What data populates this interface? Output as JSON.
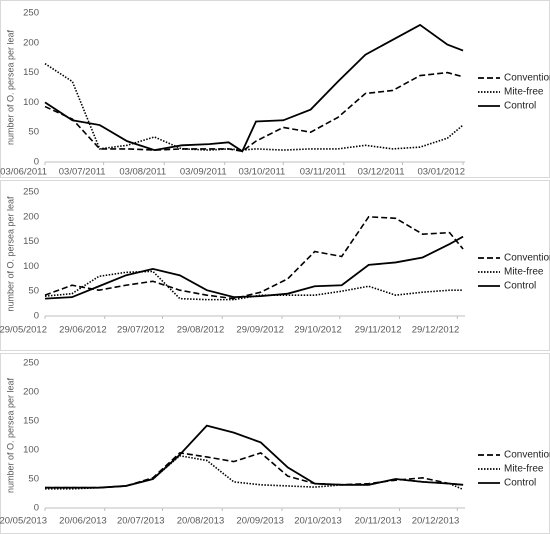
{
  "chart_data": [
    {
      "type": "line",
      "ylabel": "number of O. persea per leaf",
      "legend": "right",
      "grid": false,
      "x": [
        "2011-06-03",
        "2011-06-17",
        "2011-07-01",
        "2011-07-15",
        "2011-07-29",
        "2011-08-12",
        "2011-08-26",
        "2011-09-05",
        "2011-09-12",
        "2011-09-19",
        "2011-10-03",
        "2011-10-17",
        "2011-10-31",
        "2011-11-14",
        "2011-11-28",
        "2011-12-12",
        "2011-12-26",
        "2012-01-03"
      ],
      "xlim": [
        "2011-06-03",
        "2012-01-04"
      ],
      "xticks": [
        {
          "value": "2011-06-03",
          "label": "03/06/2011"
        },
        {
          "value": "2011-07-03",
          "label": "03/07/2011"
        },
        {
          "value": "2011-08-03",
          "label": "03/08/2011"
        },
        {
          "value": "2011-09-03",
          "label": "03/09/2011"
        },
        {
          "value": "2011-10-03",
          "label": "03/10/2011"
        },
        {
          "value": "2011-11-03",
          "label": "03/11/2011"
        },
        {
          "value": "2011-12-03",
          "label": "03/12/2011"
        },
        {
          "value": "2012-01-03",
          "label": "03/01/2012"
        }
      ],
      "ylim": [
        0,
        250
      ],
      "yticks": [
        0,
        50,
        100,
        150,
        200,
        250
      ],
      "series": [
        {
          "name": "Conventional",
          "color": "#000000",
          "dash": "dashed",
          "values": [
            93,
            72,
            22,
            22,
            20,
            22,
            22,
            22,
            18,
            35,
            58,
            50,
            75,
            115,
            120,
            145,
            150,
            143
          ]
        },
        {
          "name": "Mite-free",
          "color": "#000000",
          "dash": "dotted",
          "values": [
            165,
            135,
            22,
            28,
            42,
            22,
            20,
            22,
            20,
            22,
            20,
            22,
            22,
            28,
            22,
            25,
            40,
            62
          ]
        },
        {
          "name": "Control",
          "color": "#000000",
          "dash": "solid",
          "values": [
            100,
            70,
            62,
            35,
            20,
            28,
            30,
            33,
            18,
            68,
            70,
            88,
            135,
            180,
            205,
            230,
            197,
            187
          ]
        }
      ]
    },
    {
      "type": "line",
      "ylabel": "number of O. persea per leaf",
      "legend": "right",
      "grid": false,
      "x": [
        "2012-05-29",
        "2012-06-12",
        "2012-06-26",
        "2012-07-10",
        "2012-07-24",
        "2012-08-07",
        "2012-08-21",
        "2012-09-04",
        "2012-09-18",
        "2012-10-02",
        "2012-10-16",
        "2012-10-30",
        "2012-11-13",
        "2012-11-27",
        "2012-12-11",
        "2012-12-25",
        "2013-01-01"
      ],
      "xlim": [
        "2012-05-29",
        "2013-01-02"
      ],
      "xticks": [
        {
          "value": "2012-05-29",
          "label": "29/05/2012"
        },
        {
          "value": "2012-06-29",
          "label": "29/06/2012"
        },
        {
          "value": "2012-07-29",
          "label": "29/07/2012"
        },
        {
          "value": "2012-08-29",
          "label": "29/08/2012"
        },
        {
          "value": "2012-09-29",
          "label": "29/09/2012"
        },
        {
          "value": "2012-10-29",
          "label": "29/10/2012"
        },
        {
          "value": "2012-11-29",
          "label": "29/11/2012"
        },
        {
          "value": "2012-12-29",
          "label": "29/12/2012"
        }
      ],
      "ylim": [
        0,
        250
      ],
      "yticks": [
        0,
        50,
        100,
        150,
        200,
        250
      ],
      "series": [
        {
          "name": "Conventional",
          "color": "#000000",
          "dash": "dashed",
          "values": [
            42,
            62,
            52,
            62,
            70,
            52,
            42,
            35,
            48,
            75,
            130,
            120,
            200,
            197,
            165,
            168,
            135
          ]
        },
        {
          "name": "Mite-free",
          "color": "#000000",
          "dash": "dotted",
          "values": [
            40,
            45,
            80,
            88,
            90,
            35,
            33,
            33,
            42,
            42,
            42,
            50,
            60,
            42,
            48,
            52,
            52
          ]
        },
        {
          "name": "Control",
          "color": "#000000",
          "dash": "solid",
          "values": [
            35,
            38,
            60,
            82,
            95,
            82,
            52,
            38,
            40,
            45,
            60,
            62,
            103,
            108,
            118,
            145,
            160
          ]
        }
      ]
    },
    {
      "type": "line",
      "ylabel": "number of O. persea per leaf",
      "legend": "right",
      "grid": false,
      "x": [
        "2013-05-20",
        "2013-06-03",
        "2013-06-17",
        "2013-07-01",
        "2013-07-15",
        "2013-07-29",
        "2013-08-12",
        "2013-08-26",
        "2013-09-09",
        "2013-09-23",
        "2013-10-07",
        "2013-10-21",
        "2013-11-04",
        "2013-11-18",
        "2013-12-02",
        "2013-12-16",
        "2013-12-23"
      ],
      "xlim": [
        "2013-05-20",
        "2013-12-24"
      ],
      "xticks": [
        {
          "value": "2013-05-20",
          "label": "20/05/2013"
        },
        {
          "value": "2013-06-20",
          "label": "20/06/2013"
        },
        {
          "value": "2013-07-20",
          "label": "20/07/2013"
        },
        {
          "value": "2013-08-20",
          "label": "20/08/2013"
        },
        {
          "value": "2013-09-20",
          "label": "20/09/2013"
        },
        {
          "value": "2013-10-20",
          "label": "20/10/2013"
        },
        {
          "value": "2013-11-20",
          "label": "20/11/2013"
        },
        {
          "value": "2013-12-20",
          "label": "20/12/2013"
        }
      ],
      "ylim": [
        0,
        250
      ],
      "yticks": [
        0,
        50,
        100,
        150,
        200,
        250
      ],
      "series": [
        {
          "name": "Conventional",
          "color": "#000000",
          "dash": "dashed",
          "values": [
            35,
            35,
            35,
            38,
            52,
            95,
            88,
            80,
            95,
            55,
            42,
            40,
            42,
            48,
            52,
            42,
            40
          ]
        },
        {
          "name": "Mite-free",
          "color": "#000000",
          "dash": "dotted",
          "values": [
            33,
            33,
            35,
            38,
            50,
            90,
            82,
            45,
            40,
            38,
            36,
            40,
            40,
            50,
            45,
            42,
            32
          ]
        },
        {
          "name": "Control",
          "color": "#000000",
          "dash": "solid",
          "values": [
            35,
            35,
            35,
            38,
            50,
            92,
            142,
            130,
            113,
            70,
            42,
            40,
            40,
            50,
            45,
            42,
            40
          ]
        }
      ]
    }
  ]
}
